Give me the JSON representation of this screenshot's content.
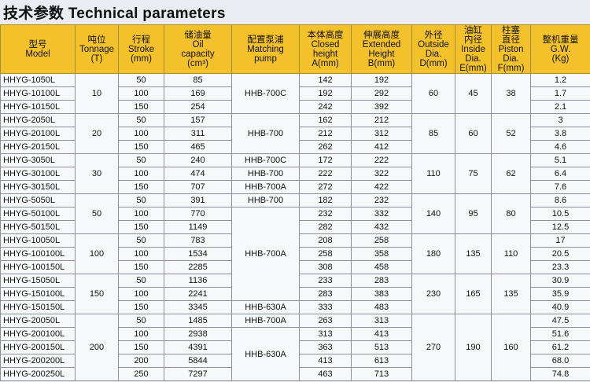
{
  "title": "技术参数 Technical parameters",
  "table": {
    "headers": [
      [
        "型号",
        "Model"
      ],
      [
        "吨位",
        "Tonnage",
        "(T)"
      ],
      [
        "行程",
        "Stroke",
        "(mm)"
      ],
      [
        "储油量",
        "Oil",
        "capacity",
        "(cm³)"
      ],
      [
        "配置泵浦",
        "Matching",
        "pump"
      ],
      [
        "本体高度",
        "Closed",
        "height",
        "A(mm)"
      ],
      [
        "伸展高度",
        "Extended",
        "Height",
        "B(mm)"
      ],
      [
        "外径",
        "Outside Dia.",
        "D(mm)"
      ],
      [
        "油缸",
        "内径",
        "Inside Dia.",
        "E(mm)"
      ],
      [
        "柱塞",
        "直径",
        "Piston Dia.",
        "F(mm)"
      ],
      [
        "整机重量",
        "G.W.",
        "(Kg)"
      ]
    ],
    "pumps": [
      "HHB-700C",
      "HHB-700",
      "HHB-700C",
      "HHB-700",
      "HHB-700A",
      "HHB-700",
      "HHB-700A",
      "HHB-630A",
      "HHB-700A",
      "HHB-630A"
    ],
    "groups": [
      {
        "tonnage": "10",
        "outside": "60",
        "inside": "45",
        "piston": "38",
        "rows": [
          [
            "HHYG-1050L",
            "50",
            "85",
            "142",
            "192",
            "1.2"
          ],
          [
            "HHYG-10100L",
            "100",
            "169",
            "192",
            "292",
            "1.7"
          ],
          [
            "HHYG-10150L",
            "150",
            "254",
            "242",
            "392",
            "2.1"
          ]
        ]
      },
      {
        "tonnage": "20",
        "outside": "85",
        "inside": "60",
        "piston": "52",
        "rows": [
          [
            "HHYG-2050L",
            "50",
            "157",
            "162",
            "212",
            "3"
          ],
          [
            "HHYG-20100L",
            "100",
            "311",
            "212",
            "312",
            "3.8"
          ],
          [
            "HHYG-20150L",
            "150",
            "465",
            "262",
            "412",
            "4.6"
          ]
        ]
      },
      {
        "tonnage": "30",
        "outside": "110",
        "inside": "75",
        "piston": "62",
        "rows": [
          [
            "HHYG-3050L",
            "50",
            "240",
            "172",
            "222",
            "5.1"
          ],
          [
            "HHYG-30100L",
            "100",
            "474",
            "222",
            "322",
            "6.4"
          ],
          [
            "HHYG-30150L",
            "150",
            "707",
            "272",
            "422",
            "7.6"
          ]
        ]
      },
      {
        "tonnage": "50",
        "outside": "140",
        "inside": "95",
        "piston": "80",
        "rows": [
          [
            "HHYG-5050L",
            "50",
            "391",
            "182",
            "232",
            "8.6"
          ],
          [
            "HHYG-50100L",
            "100",
            "770",
            "232",
            "332",
            "10.5"
          ],
          [
            "HHYG-50150L",
            "150",
            "1149",
            "282",
            "432",
            "12.5"
          ]
        ]
      },
      {
        "tonnage": "100",
        "outside": "180",
        "inside": "135",
        "piston": "110",
        "rows": [
          [
            "HHYG-10050L",
            "50",
            "783",
            "208",
            "258",
            "17"
          ],
          [
            "HHYG-100100L",
            "100",
            "1534",
            "258",
            "358",
            "20.5"
          ],
          [
            "HHYG-100150L",
            "150",
            "2285",
            "308",
            "458",
            "23.3"
          ]
        ]
      },
      {
        "tonnage": "150",
        "outside": "230",
        "inside": "165",
        "piston": "135",
        "rows": [
          [
            "HHYG-15050L",
            "50",
            "1136",
            "233",
            "283",
            "30.9"
          ],
          [
            "HHYG-150100L",
            "100",
            "2241",
            "283",
            "383",
            "35.9"
          ],
          [
            "HHYG-150150L",
            "150",
            "3345",
            "333",
            "483",
            "40.9"
          ]
        ]
      },
      {
        "tonnage": "200",
        "outside": "270",
        "inside": "190",
        "piston": "160",
        "rows": [
          [
            "HHYG-20050L",
            "50",
            "1485",
            "263",
            "313",
            "47.5"
          ],
          [
            "HHYG-200100L",
            "100",
            "2938",
            "313",
            "413",
            "51.6"
          ],
          [
            "HHYG-200150L",
            "150",
            "4391",
            "363",
            "513",
            "61.2"
          ],
          [
            "HHYG-200200L",
            "200",
            "5844",
            "413",
            "613",
            "68.0"
          ],
          [
            "HHYG-200250L",
            "250",
            "7297",
            "463",
            "713",
            "74.8"
          ]
        ]
      }
    ]
  }
}
